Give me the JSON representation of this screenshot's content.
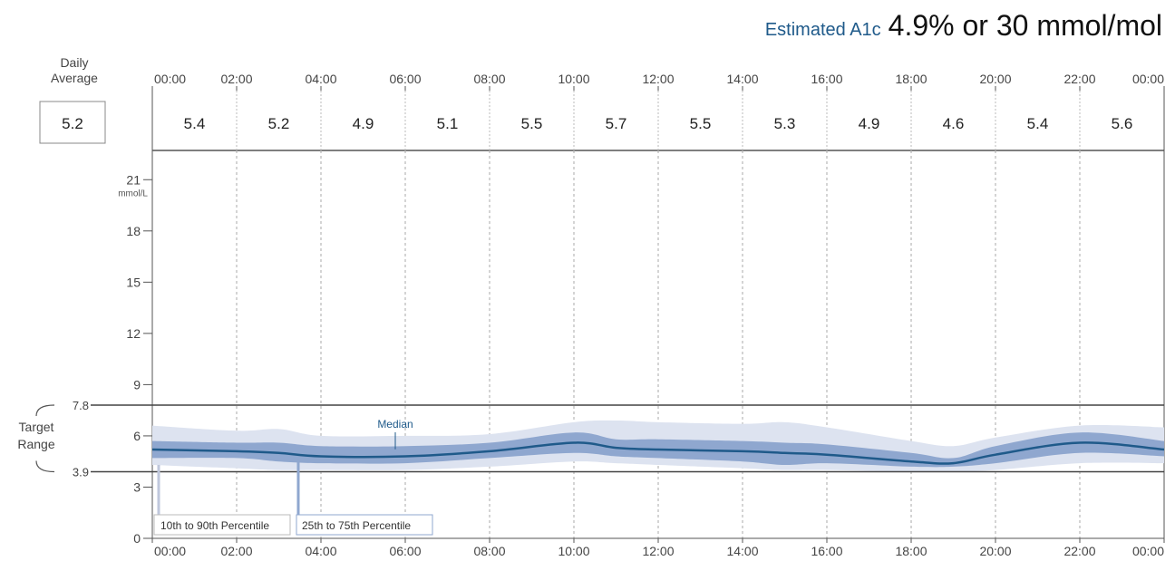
{
  "header": {
    "a1c_label": "Estimated A1c",
    "a1c_value": "4.9% or 30 mmol/mol"
  },
  "daily_average": {
    "label_line1": "Daily",
    "label_line2": "Average",
    "value": "5.2"
  },
  "time_labels": [
    "00:00",
    "02:00",
    "04:00",
    "06:00",
    "08:00",
    "10:00",
    "12:00",
    "14:00",
    "16:00",
    "18:00",
    "20:00",
    "22:00",
    "00:00"
  ],
  "period_averages": [
    "5.4",
    "5.2",
    "4.9",
    "5.1",
    "5.5",
    "5.7",
    "5.5",
    "5.3",
    "4.9",
    "4.6",
    "5.4",
    "5.6"
  ],
  "target_range": {
    "label_line1": "Target",
    "label_line2": "Range",
    "high": "7.8",
    "low": "3.9"
  },
  "legend": {
    "median": "Median",
    "p10_90": "10th to 90th Percentile",
    "p25_75": "25th to 75th Percentile"
  },
  "colors": {
    "median": "#1f5a8a",
    "band_25_75": "#8fa7cf",
    "band_10_90": "#dde3f0",
    "grid": "#999999",
    "axis": "#555555"
  },
  "chart_data": {
    "type": "area",
    "xlabel": "",
    "ylabel": "mmol/L",
    "xlim": [
      0,
      24
    ],
    "ylim": [
      0,
      22.5
    ],
    "yticks": [
      0,
      3,
      6,
      9,
      12,
      15,
      18,
      21
    ],
    "target_range": [
      3.9,
      7.8
    ],
    "x": [
      0,
      2,
      3,
      4,
      6,
      8,
      10,
      11,
      12,
      14,
      15,
      16,
      18,
      19,
      20,
      22,
      24
    ],
    "series": [
      {
        "name": "Median",
        "values": [
          5.2,
          5.1,
          5.0,
          4.8,
          4.8,
          5.1,
          5.6,
          5.3,
          5.2,
          5.1,
          5.0,
          4.9,
          4.5,
          4.4,
          4.9,
          5.6,
          5.2
        ]
      },
      {
        "name": "25th to 75th Percentile",
        "low": [
          4.7,
          4.7,
          4.5,
          4.4,
          4.4,
          4.7,
          5.0,
          4.8,
          4.7,
          4.5,
          4.3,
          4.4,
          4.2,
          4.2,
          4.4,
          5.0,
          4.8
        ],
        "high": [
          5.7,
          5.6,
          5.6,
          5.4,
          5.4,
          5.6,
          6.2,
          5.8,
          5.8,
          5.7,
          5.6,
          5.5,
          5.0,
          4.7,
          5.4,
          6.2,
          5.7
        ]
      },
      {
        "name": "10th to 90th Percentile",
        "low": [
          4.3,
          4.1,
          4.0,
          4.0,
          4.0,
          4.2,
          4.5,
          4.4,
          4.3,
          4.1,
          4.0,
          4.0,
          3.9,
          3.9,
          4.0,
          4.4,
          4.4
        ],
        "high": [
          6.6,
          6.3,
          6.4,
          6.0,
          6.0,
          6.1,
          6.8,
          6.9,
          6.8,
          6.7,
          6.8,
          6.5,
          5.7,
          5.4,
          5.9,
          6.6,
          6.5
        ]
      }
    ]
  }
}
